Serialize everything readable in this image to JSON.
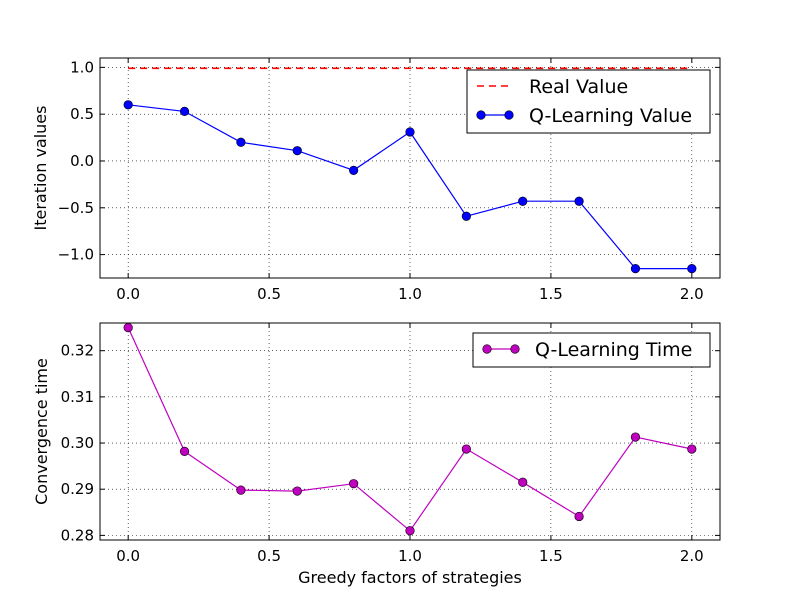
{
  "chart_data": [
    {
      "type": "line",
      "xlabel": "",
      "ylabel": "Iteration values",
      "xlim": [
        -0.1,
        2.1
      ],
      "ylim": [
        -1.25,
        1.1
      ],
      "xticks": [
        0.0,
        0.5,
        1.0,
        1.5,
        2.0
      ],
      "xtick_labels": [
        "0.0",
        "0.5",
        "1.0",
        "1.5",
        "2.0"
      ],
      "yticks": [
        1.0,
        0.5,
        0.0,
        -0.5,
        -1.0
      ],
      "ytick_labels": [
        "1.0",
        "0.5",
        "0.0",
        "−0.5",
        "−1.0"
      ],
      "grid": true,
      "legend": "top-right",
      "series": [
        {
          "name": "Real Value",
          "color": "#ff0000",
          "style": "dashed",
          "x": [
            0.0,
            2.0
          ],
          "y": [
            0.99,
            0.99
          ]
        },
        {
          "name": "Q-Learning Value",
          "color": "#0000ff",
          "style": "line-marker",
          "x": [
            0.0,
            0.2,
            0.4,
            0.6,
            0.8,
            1.0,
            1.2,
            1.4,
            1.6,
            1.8,
            2.0
          ],
          "y": [
            0.6,
            0.53,
            0.2,
            0.11,
            -0.1,
            0.31,
            -0.59,
            -0.43,
            -0.43,
            -1.15,
            -1.15
          ]
        }
      ]
    },
    {
      "type": "line",
      "xlabel": "Greedy factors of strategies",
      "ylabel": "Convergence time",
      "xlim": [
        -0.1,
        2.1
      ],
      "ylim": [
        0.279,
        0.326
      ],
      "xticks": [
        0.0,
        0.5,
        1.0,
        1.5,
        2.0
      ],
      "xtick_labels": [
        "0.0",
        "0.5",
        "1.0",
        "1.5",
        "2.0"
      ],
      "yticks": [
        0.32,
        0.31,
        0.3,
        0.29,
        0.28
      ],
      "ytick_labels": [
        "0.32",
        "0.31",
        "0.30",
        "0.29",
        "0.28"
      ],
      "grid": true,
      "legend": "top-right",
      "series": [
        {
          "name": "Q-Learning Time",
          "color": "#bf00bf",
          "style": "line-marker",
          "x": [
            0.0,
            0.2,
            0.4,
            0.6,
            0.8,
            1.0,
            1.2,
            1.4,
            1.6,
            1.8,
            2.0
          ],
          "y": [
            0.325,
            0.2982,
            0.2898,
            0.2896,
            0.2912,
            0.281,
            0.2987,
            0.2915,
            0.2841,
            0.3013,
            0.2987
          ]
        }
      ]
    }
  ]
}
